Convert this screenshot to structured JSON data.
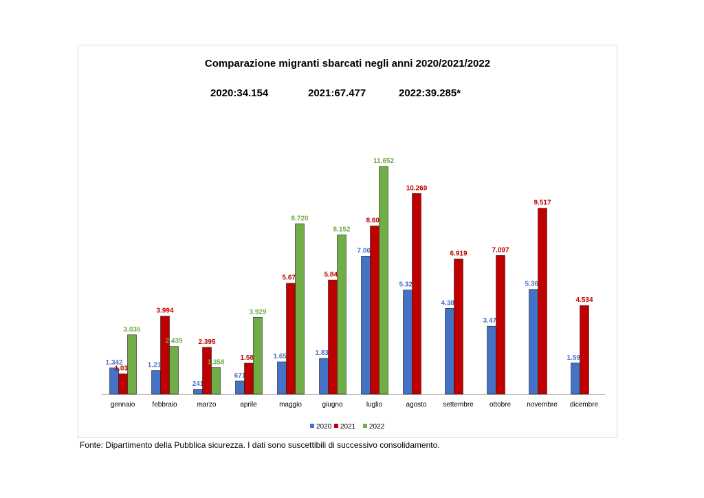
{
  "colors": {
    "s2020": "#4472C4",
    "s2021": "#C00000",
    "s2022": "#70AD47"
  },
  "totals": {
    "t2020": "2020:34.154",
    "t2021": "2021:67.477",
    "t2022": "2022:39.285*"
  },
  "source": "Fonte: Dipartimento della Pubblica sicurezza. I dati sono suscettibili di successivo consolidamento.",
  "chart_data": {
    "type": "bar",
    "title": "Comparazione migranti sbarcati negli anni 2020/2021/2022",
    "xlabel": "",
    "ylabel": "",
    "ylim": [
      0,
      12000
    ],
    "grid": false,
    "legend_position": "bottom",
    "categories": [
      "gennaio",
      "febbraio",
      "marzo",
      "aprile",
      "maggio",
      "giugno",
      "luglio",
      "agosto",
      "settembre",
      "ottobre",
      "novembre",
      "dicembre"
    ],
    "series": [
      {
        "name": "2020",
        "values": [
          1342,
          1211,
          241,
          671,
          1654,
          1831,
          7062,
          5328,
          4386,
          3477,
          5360,
          1591
        ],
        "labels": [
          "1.342",
          "1.211",
          "241",
          "671",
          "1.654",
          "1.831",
          "7.062",
          "5.328",
          "4.386",
          "3.477",
          "5.360",
          "1.591"
        ]
      },
      {
        "name": "2021",
        "values": [
          1039,
          3994,
          2395,
          1585,
          5679,
          5840,
          8609,
          10269,
          6919,
          7097,
          9517,
          4534
        ],
        "labels": [
          "1.039",
          "3.994",
          "2.395",
          "1.585",
          "5.679",
          "5.840",
          "8.609",
          "10.269",
          "6.919",
          "7.097",
          "9.517",
          "4.534"
        ]
      },
      {
        "name": "2022",
        "values": [
          3035,
          2439,
          1358,
          3929,
          8720,
          8152,
          11652,
          null,
          null,
          null,
          null,
          null
        ],
        "labels": [
          "3.035",
          "2.439",
          "1.358",
          "3.929",
          "8.720",
          "8.152",
          "11.652",
          "",
          "",
          "",
          "",
          ""
        ]
      }
    ]
  }
}
